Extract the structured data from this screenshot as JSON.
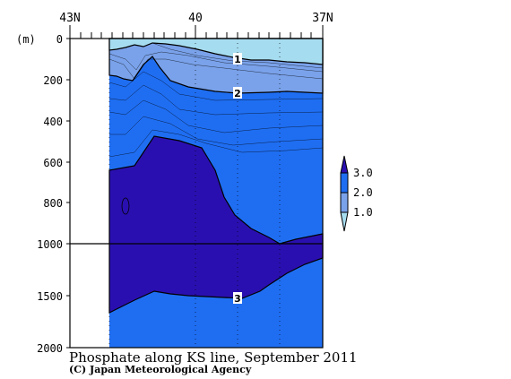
{
  "chart_data": {
    "type": "contour",
    "title": "Phosphate along KS line, September 2011",
    "credit": "(C) Japan Meteorological Agency",
    "yunit": "(m)",
    "x_ticks": [
      "43N",
      "40",
      "37N"
    ],
    "y_ticks": [
      "0",
      "200",
      "400",
      "600",
      "800",
      "1000",
      "1500",
      "2000"
    ],
    "ylim": [
      0,
      2000
    ],
    "levels": [
      1.0,
      2.0,
      3.0
    ],
    "legend_labels": [
      "3.0",
      "2.0",
      "1.0"
    ],
    "contour_labels": [
      "1",
      "2",
      "3"
    ],
    "colors": {
      "below_1": "#a6dcef",
      "1_to_2": "#7aa2ea",
      "2_to_3": "#1f6ef2",
      "above_3": "#2a0fb0"
    }
  }
}
